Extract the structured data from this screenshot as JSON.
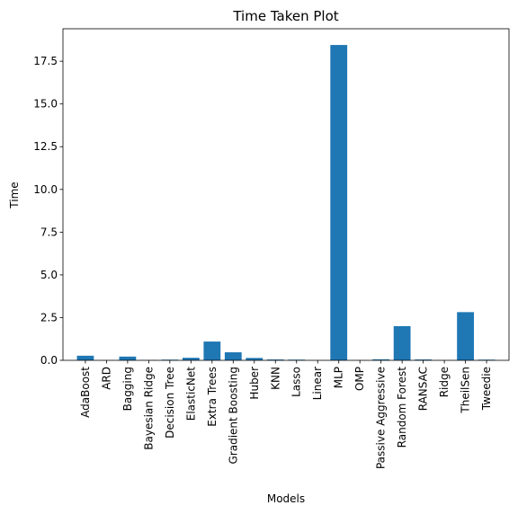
{
  "chart_data": {
    "type": "bar",
    "title": "Time Taken Plot",
    "xlabel": "Models",
    "ylabel": "Time",
    "ylim": [
      0,
      19.4
    ],
    "yticks": [
      "0.0",
      "2.5",
      "5.0",
      "7.5",
      "10.0",
      "12.5",
      "15.0",
      "17.5"
    ],
    "grid": false,
    "bar_color": "#1f77b4",
    "categories": [
      "AdaBoost",
      "ARD",
      "Bagging",
      "Bayesian Ridge",
      "Decision Tree",
      "ElasticNet",
      "Extra Trees",
      "Gradient Boosting",
      "Huber",
      "KNN",
      "Lasso",
      "Linear",
      "MLP",
      "OMP",
      "Passive Aggressive",
      "Random Forest",
      "RANSAC",
      "Ridge",
      "TheilSen",
      "Tweedie"
    ],
    "values": [
      0.27,
      0.01,
      0.22,
      0.02,
      0.04,
      0.15,
      1.1,
      0.47,
      0.14,
      0.05,
      0.04,
      0.01,
      18.45,
      0.01,
      0.06,
      2.0,
      0.05,
      0.01,
      2.82,
      0.04
    ]
  }
}
